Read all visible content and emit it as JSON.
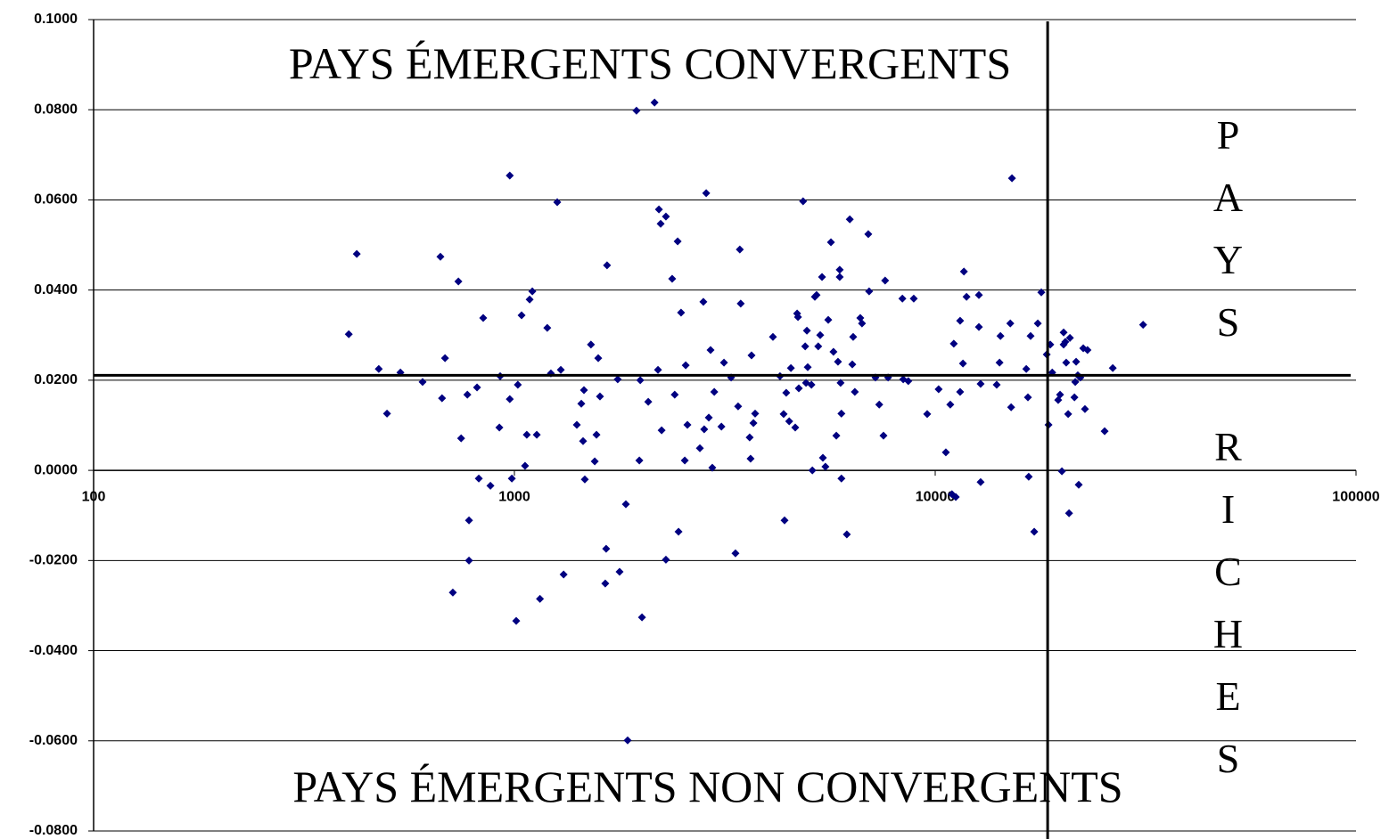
{
  "chart_data": {
    "type": "scatter",
    "annotations": [
      "PAYS ÉMERGENTS CONVERGENTS",
      "PAYS ÉMERGENTS NON CONVERGENTS",
      "PAYS RICHES"
    ],
    "color": "#000080",
    "log_x": true,
    "grid": true,
    "xlim": [
      100,
      100000
    ],
    "xticks": [
      100,
      1000,
      10000,
      100000
    ],
    "ylim": [
      -0.08,
      0.1
    ],
    "yticks": [
      {
        "value": -0.08,
        "label": "-0.0800"
      },
      {
        "value": -0.06,
        "label": "-0.0600"
      },
      {
        "value": -0.04,
        "label": "-0.0400"
      },
      {
        "value": -0.02,
        "label": "-0.0200"
      },
      {
        "value": 0,
        "label": "0.0000"
      },
      {
        "value": 0.02,
        "label": "0.0200"
      },
      {
        "value": 0.04,
        "label": "0.0400"
      },
      {
        "value": 0.06,
        "label": "0.0600"
      },
      {
        "value": 0.08,
        "label": "0.0800"
      },
      {
        "value": 0.1,
        "label": "0.1000"
      }
    ],
    "reference_lines": {
      "y": 0.0211,
      "x": 18500
    },
    "x": [
      404,
      422,
      476,
      498,
      536,
      605,
      667,
      673,
      684,
      714,
      736,
      747,
      773,
      780,
      780,
      815,
      823,
      843,
      877,
      921,
      925,
      975,
      975,
      986,
      1010,
      1019,
      1040,
      1060,
      1070,
      1087,
      1103,
      1130,
      1150,
      1197,
      1221,
      1264,
      1289,
      1309,
      1407,
      1442,
      1456,
      1463,
      1470,
      1520,
      1552,
      1567,
      1582,
      1597,
      1644,
      1652,
      1660,
      1760,
      1778,
      1840,
      1858,
      1950,
      1981,
      1991,
      2010,
      2080,
      2153,
      2194,
      2205,
      2226,
      2238,
      2291,
      2291,
      2371,
      2404,
      2443,
      2455,
      2489,
      2540,
      2553,
      2577,
      2759,
      2812,
      2825,
      2856,
      2897,
      2925,
      2953,
      2985,
      3104,
      3148,
      3273,
      3352,
      3401,
      3433,
      3450,
      3623,
      3641,
      3660,
      3698,
      3733,
      4115,
      4277,
      4363,
      4385,
      4426,
      4498,
      4540,
      4649,
      4697,
      4719,
      4741,
      4853,
      4909,
      4932,
      4955,
      4978,
      5080,
      5105,
      5176,
      5224,
      5272,
      5330,
      5383,
      5408,
      5484,
      5570,
      5652,
      5731,
      5821,
      5874,
      5930,
      5930,
      5958,
      5985,
      5985,
      6166,
      6266,
      6353,
      6383,
      6442,
      6637,
      6699,
      6934,
      6966,
      7211,
      7362,
      7534,
      7603,
      7726,
      8356,
      8395,
      8630,
      8892,
      9570,
      10190,
      10600,
      10860,
      10960,
      11070,
      11190,
      11460,
      11460,
      11640,
      11700,
      11870,
      12700,
      12700,
      12820,
      12820,
      14000,
      14220,
      14290,
      15080,
      15150,
      15220,
      16460,
      16610,
      16680,
      16850,
      17190,
      17530,
      17870,
      18410,
      18590,
      18770,
      18970,
      19600,
      19800,
      20000,
      20190,
      20190,
      20380,
      20480,
      20700,
      20800,
      20900,
      21420,
      21520,
      21620,
      21820,
      21930,
      22130,
      22480,
      22690,
      23010,
      25270,
      26420,
      31190
    ],
    "y": [
      0.0302,
      0.048,
      0.0225,
      0.0126,
      0.0217,
      0.0196,
      0.0474,
      0.016,
      0.0249,
      -0.0271,
      0.0419,
      0.0071,
      0.0168,
      -0.0111,
      -0.02,
      0.0184,
      -0.0018,
      0.0338,
      -0.0034,
      0.0095,
      0.0209,
      0.0654,
      0.0158,
      -0.0018,
      -0.0334,
      0.019,
      0.0344,
      0.001,
      0.0079,
      0.0379,
      0.0397,
      0.0079,
      -0.0285,
      0.0316,
      0.0215,
      0.0595,
      0.0223,
      -0.0231,
      0.0101,
      0.0148,
      0.0065,
      0.0178,
      -0.002,
      0.0279,
      0.002,
      0.0079,
      0.0249,
      0.0164,
      -0.0251,
      -0.0174,
      0.0455,
      0.0202,
      -0.0225,
      -0.0075,
      -0.0599,
      0.0798,
      0.0022,
      0.02,
      -0.0326,
      0.0152,
      0.0816,
      0.0223,
      0.0579,
      0.0547,
      0.0089,
      0.0563,
      -0.0198,
      0.0425,
      0.0168,
      0.0508,
      -0.0136,
      0.035,
      0.0022,
      0.0233,
      0.0101,
      0.0049,
      0.0374,
      0.0091,
      0.0615,
      0.0117,
      0.0267,
      0.0006,
      0.0174,
      0.0097,
      0.0239,
      0.0206,
      -0.0184,
      0.0142,
      0.049,
      0.037,
      0.0073,
      0.0026,
      0.0255,
      0.0105,
      0.0126,
      0.0296,
      0.0209,
      0.0125,
      -0.0111,
      0.0172,
      0.0109,
      0.0227,
      0.0095,
      0.0348,
      0.034,
      0.0182,
      0.0597,
      0.0275,
      0.0194,
      0.031,
      0.0229,
      0.019,
      0.0,
      0.0385,
      0.0389,
      0.0275,
      0.03,
      0.0429,
      0.0028,
      0.0008,
      0.0334,
      0.0506,
      0.0263,
      0.0077,
      0.0241,
      0.0445,
      0.0429,
      0.0194,
      0.0126,
      -0.0018,
      -0.0142,
      0.0557,
      0.0235,
      0.0296,
      0.0174,
      0.0338,
      0.0326,
      0.0524,
      0.0397,
      0.0206,
      0.0146,
      0.0077,
      0.0421,
      0.0206,
      0.0381,
      0.0202,
      0.0198,
      0.0381,
      0.0125,
      0.018,
      0.004,
      0.0146,
      -0.0053,
      0.0281,
      -0.0059,
      0.0332,
      0.0174,
      0.0237,
      0.0441,
      0.0385,
      0.0318,
      0.0389,
      0.0192,
      -0.0026,
      0.019,
      0.0239,
      0.0298,
      0.0326,
      0.014,
      0.0648,
      0.0225,
      0.0162,
      -0.0014,
      0.0298,
      -0.0136,
      0.0326,
      0.0395,
      0.0257,
      0.0101,
      0.0279,
      0.0217,
      0.0156,
      0.0168,
      -0.0002,
      0.0306,
      0.0279,
      0.0285,
      0.0239,
      0.0125,
      -0.0095,
      0.0294,
      0.0162,
      0.0196,
      0.0241,
      0.0211,
      -0.0032,
      0.0206,
      0.0271,
      0.0136,
      0.0267,
      0.0087,
      0.0227,
      0.0323
    ]
  }
}
